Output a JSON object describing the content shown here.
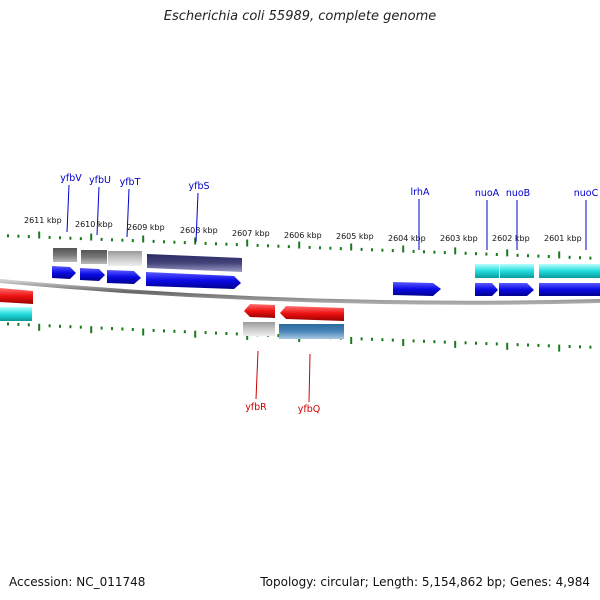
{
  "title": "Escherichia coli 55989, complete genome",
  "accession_text": "Accession: NC_011748",
  "topology_text": "Topology: circular; Length: 5,154,862 bp; Genes: 4,984",
  "colors": {
    "forward_cds": "#0a0ae6",
    "reverse_cds": "#ee1111",
    "rna_cyan": "#22dddd",
    "gray_feature": "#888888",
    "label_forward": "#0000cc",
    "label_reverse": "#cc0000",
    "tick": "#1a7a1a"
  },
  "kbp_labels": [
    "2611 kbp",
    "2610 kbp",
    "2609 kbp",
    "2608 kbp",
    "2607 kbp",
    "2606 kbp",
    "2605 kbp",
    "2604 kbp",
    "2603 kbp",
    "2602 kbp",
    "2601 kbp"
  ],
  "gene_labels_forward": [
    "yfbV",
    "yfbU",
    "yfbT",
    "yfbS",
    "lrhA",
    "nuoA",
    "nuoB",
    "nuoC"
  ],
  "gene_labels_reverse": [
    "yfbR",
    "yfbQ"
  ]
}
